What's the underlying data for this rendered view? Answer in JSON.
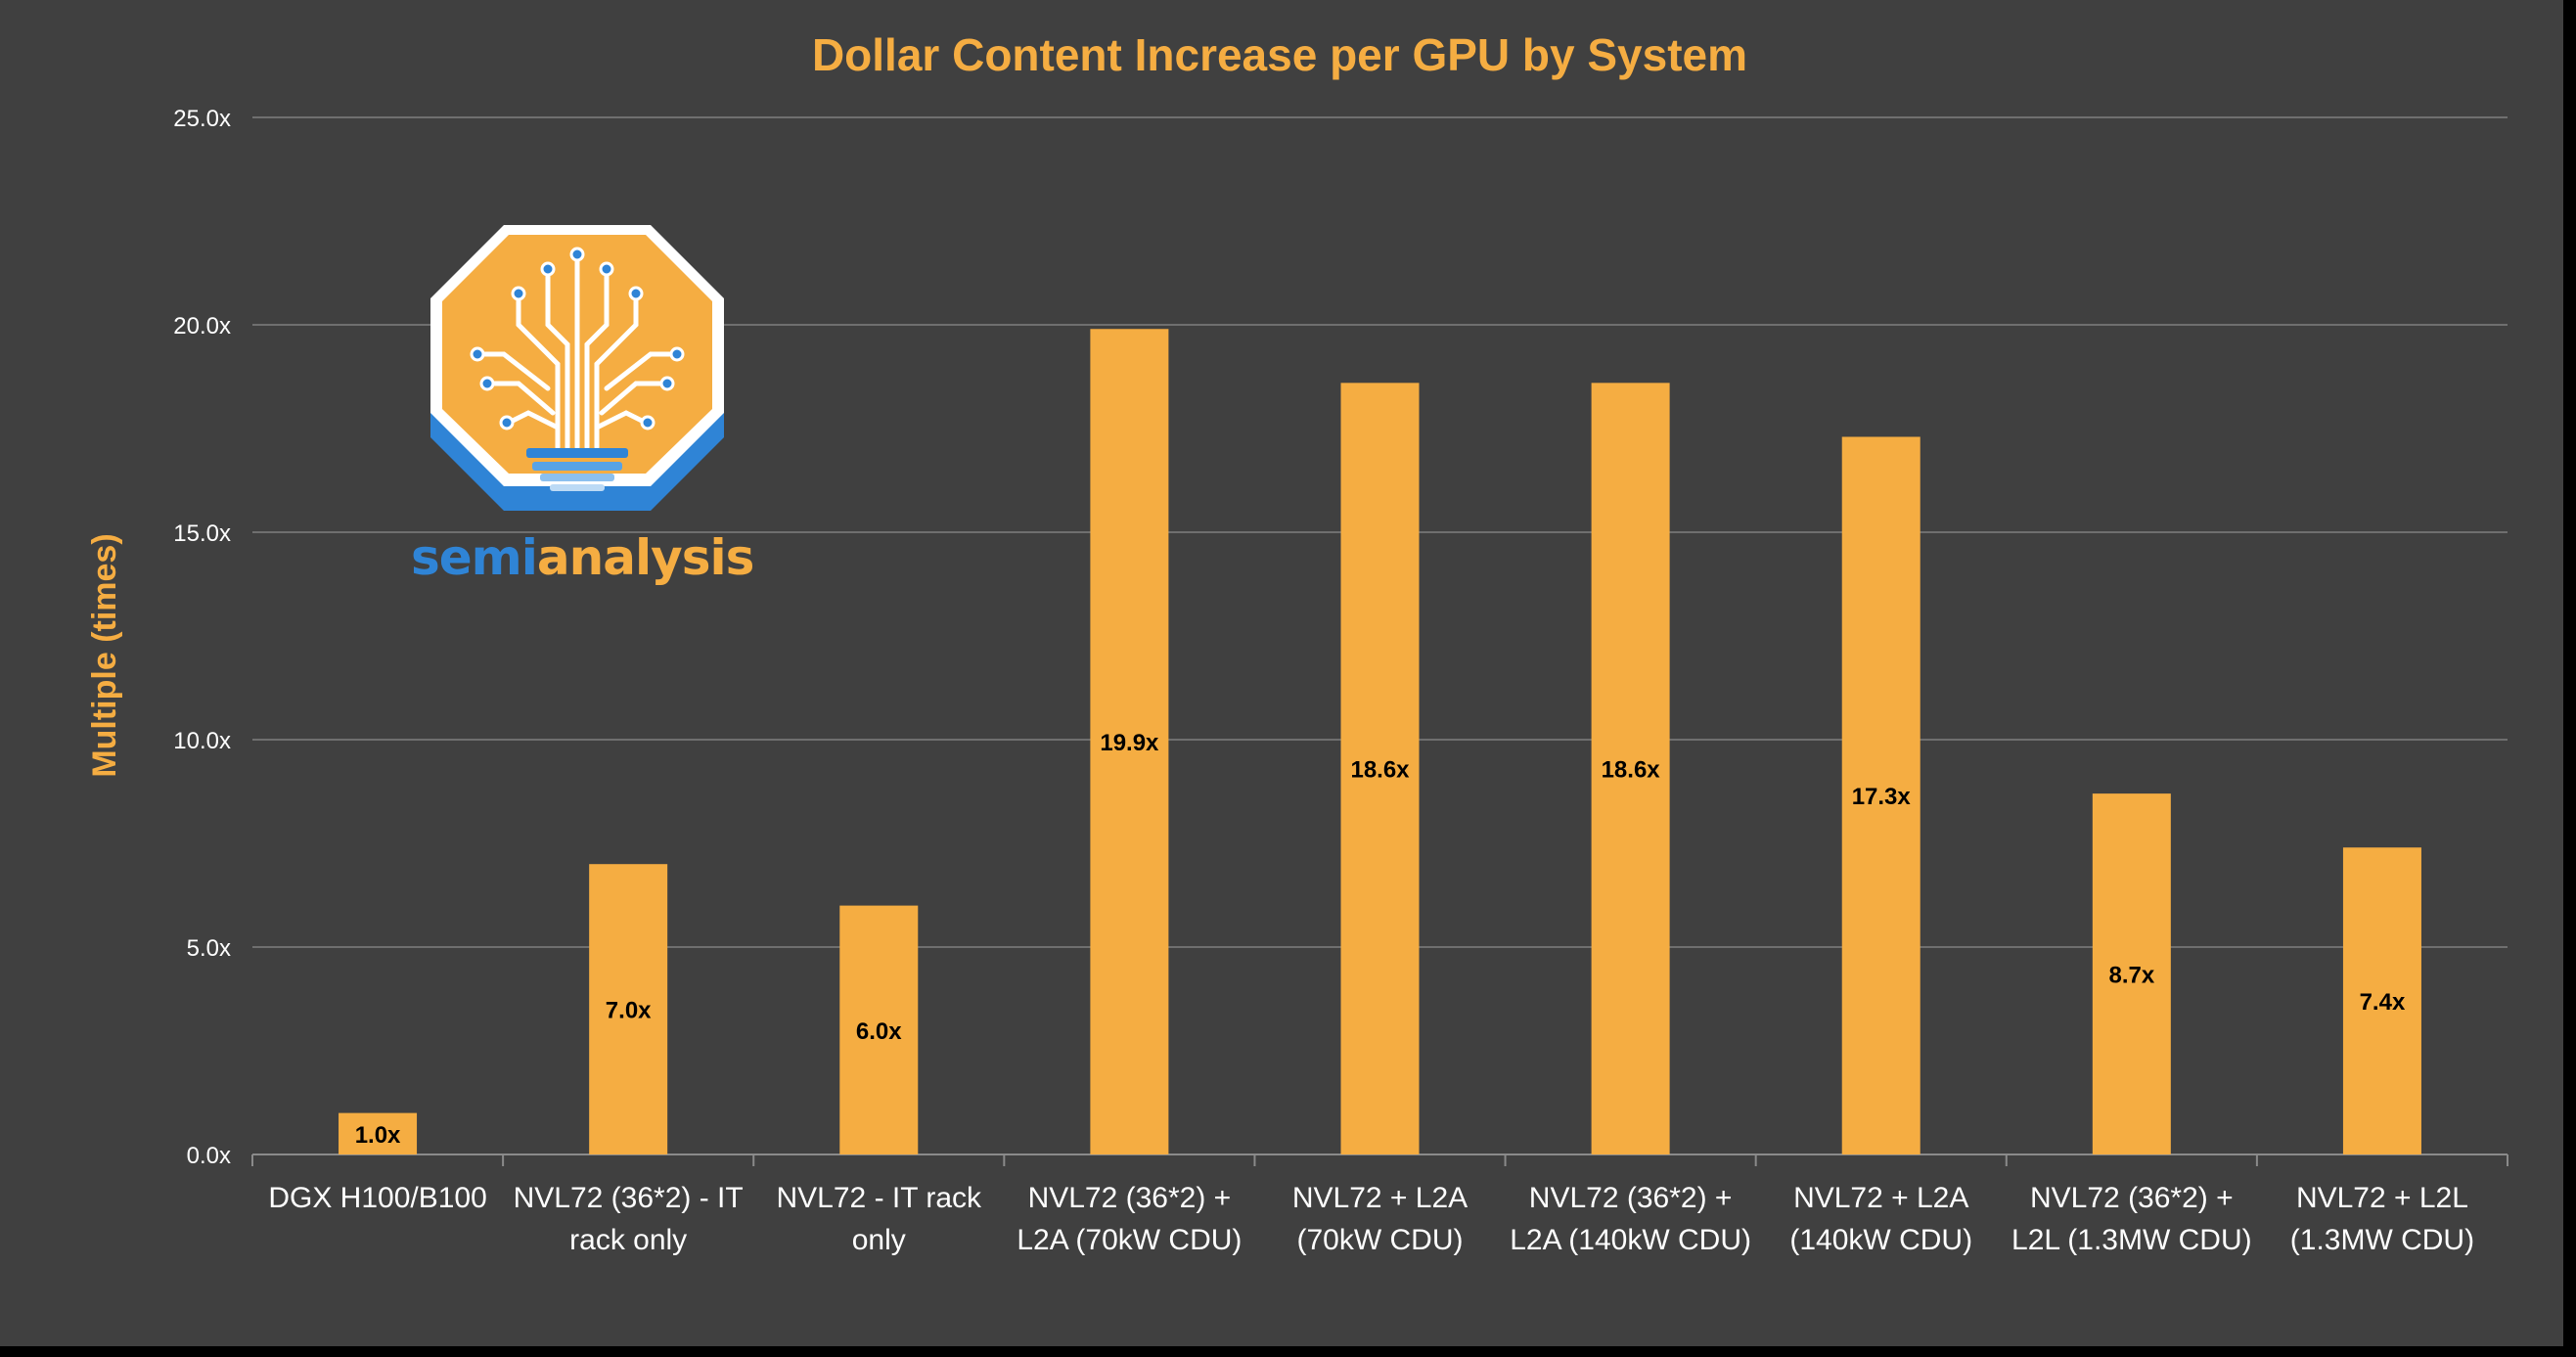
{
  "colors": {
    "background": "#404040",
    "frame": "#000000",
    "bar": "#f5ad42",
    "title": "#f5ad42",
    "axis_text": "#ffffff",
    "grid": "#6f6f6f",
    "value_label": "#000000",
    "logo_blue": "#2f84d6",
    "logo_orange": "#f5ad42"
  },
  "logo": {
    "name": "semianalysis-logo",
    "word_part1": "semi",
    "word_part2": "analysis"
  },
  "chart_data": {
    "type": "bar",
    "title": "Dollar Content Increase per GPU by System",
    "xlabel": "",
    "ylabel": "Multiple (times)",
    "ylim": [
      0,
      25
    ],
    "yticks": [
      0,
      5,
      10,
      15,
      20,
      25
    ],
    "ytick_labels": [
      "0.0x",
      "5.0x",
      "10.0x",
      "15.0x",
      "20.0x",
      "25.0x"
    ],
    "grid": true,
    "legend": "none",
    "categories": [
      [
        "DGX H100/B100"
      ],
      [
        "NVL72 (36*2) - IT",
        "rack only"
      ],
      [
        "NVL72 - IT rack",
        "only"
      ],
      [
        "NVL72 (36*2) +",
        "L2A (70kW CDU)"
      ],
      [
        "NVL72 + L2A",
        "(70kW CDU)"
      ],
      [
        "NVL72 (36*2) +",
        "L2A (140kW CDU)"
      ],
      [
        "NVL72 + L2A",
        "(140kW CDU)"
      ],
      [
        "NVL72 (36*2) +",
        "L2L (1.3MW CDU)"
      ],
      [
        "NVL72 + L2L",
        "(1.3MW CDU)"
      ]
    ],
    "values": [
      1.0,
      7.0,
      6.0,
      19.9,
      18.6,
      18.6,
      17.3,
      8.7,
      7.4
    ],
    "value_labels": [
      "1.0x",
      "7.0x",
      "6.0x",
      "19.9x",
      "18.6x",
      "18.6x",
      "17.3x",
      "8.7x",
      "7.4x"
    ]
  }
}
